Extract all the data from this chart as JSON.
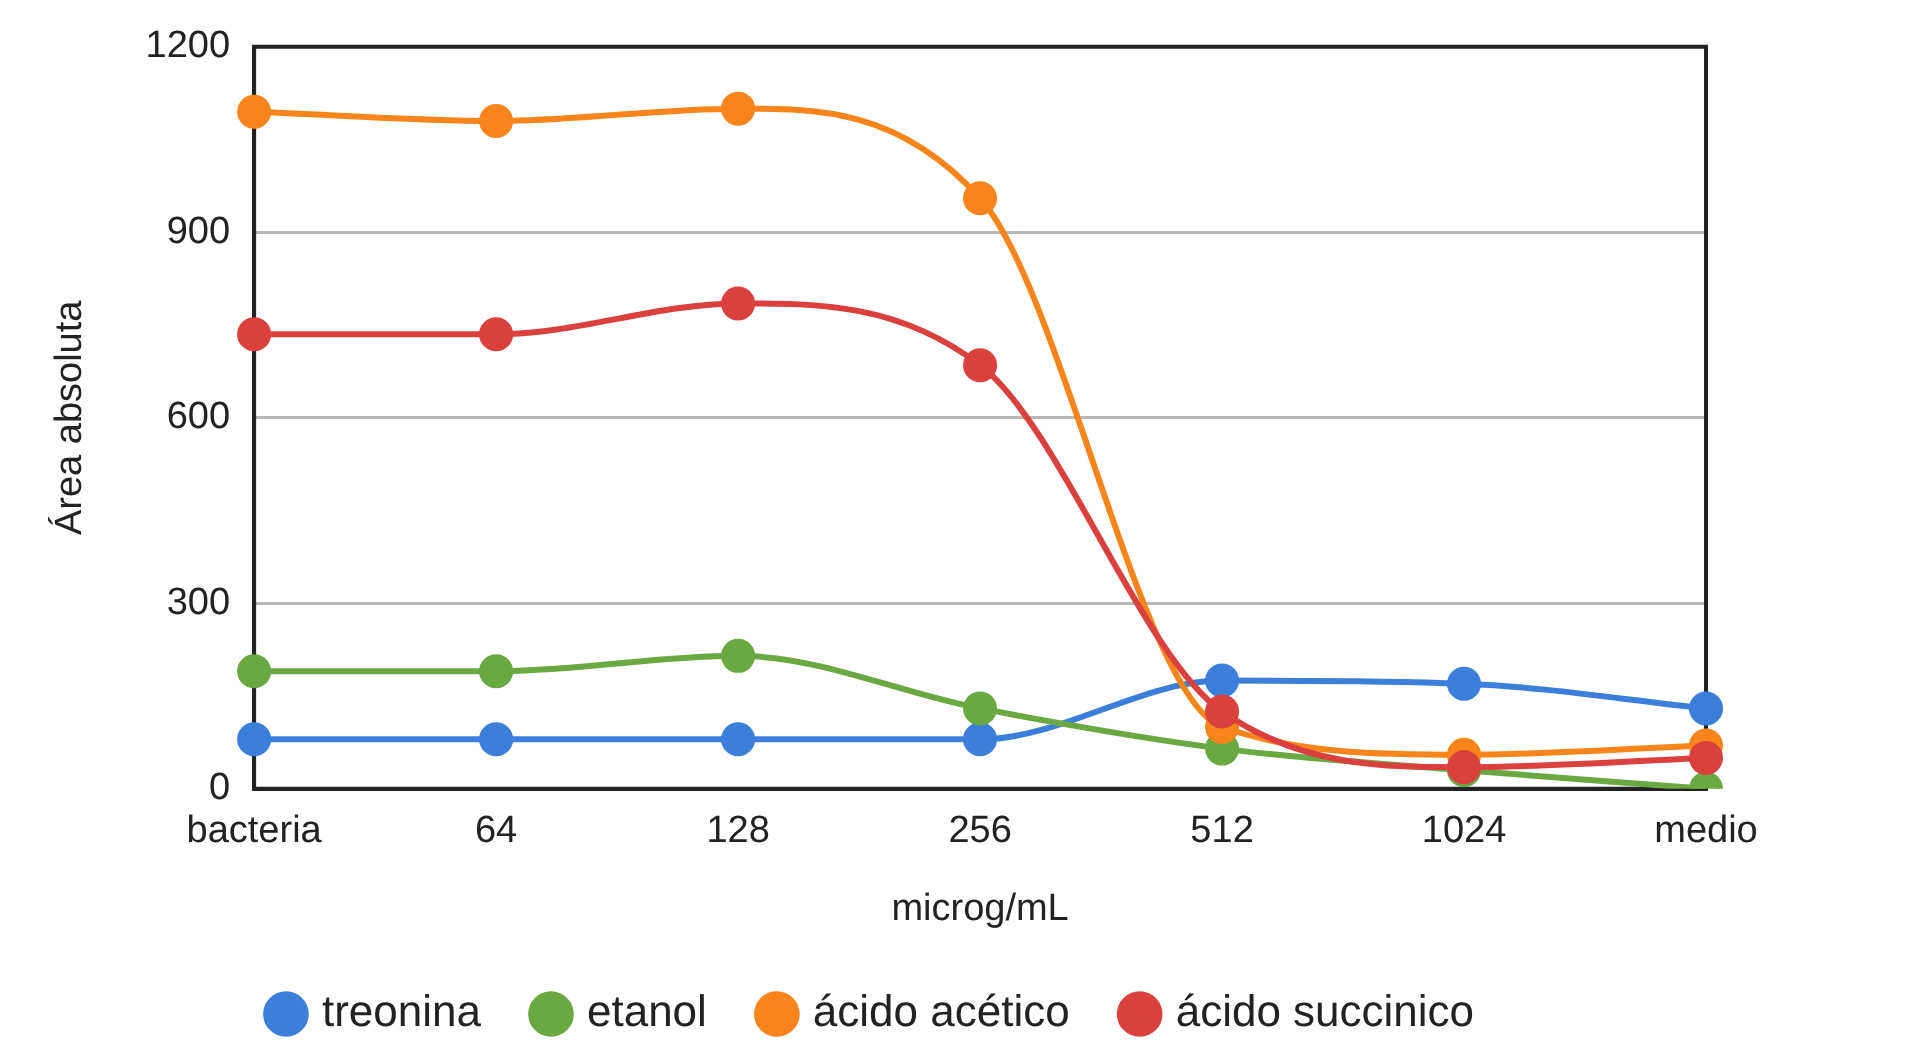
{
  "chart_data": {
    "type": "line",
    "xlabel": "microg/mL",
    "ylabel": "Área absoluta",
    "categories": [
      "bacteria",
      "64",
      "128",
      "256",
      "512",
      "1024",
      "medio"
    ],
    "series": [
      {
        "name": "treonina",
        "color": "#3b7fdb",
        "values": [
          80,
          80,
          80,
          80,
          175,
          170,
          130
        ]
      },
      {
        "name": "etanol",
        "color": "#6aa842",
        "values": [
          190,
          190,
          215,
          130,
          65,
          30,
          0
        ]
      },
      {
        "name": "ácido acético",
        "color": "#f7851b",
        "values": [
          1095,
          1080,
          1100,
          955,
          100,
          55,
          70
        ]
      },
      {
        "name": "ácido succinico",
        "color": "#d9403e",
        "values": [
          735,
          735,
          785,
          685,
          125,
          35,
          50
        ]
      }
    ],
    "ylim": [
      0,
      1200
    ],
    "yticks": [
      0,
      300,
      600,
      900,
      1200
    ],
    "grid": "y",
    "legend": "bottom",
    "marker": "circle",
    "line_style": "solid"
  }
}
